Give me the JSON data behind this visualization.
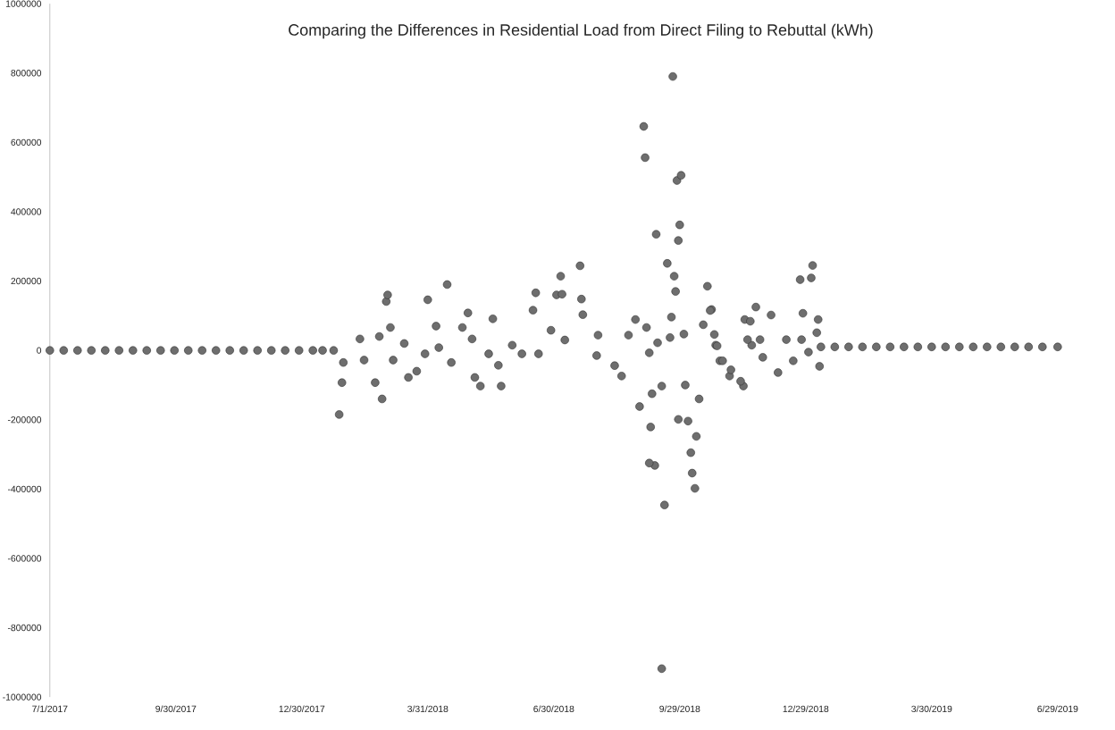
{
  "chart_data": {
    "type": "scatter",
    "title": "Comparing the Differences in Residential Load from Direct Filing to Rebuttal (kWh)",
    "color": "#6e6e6e",
    "grid": false,
    "legend": false,
    "xlim": [
      "2017-07-01",
      "2019-06-29"
    ],
    "xticks": [
      {
        "value": "2017-07-01",
        "label": "7/1/2017"
      },
      {
        "value": "2017-09-30",
        "label": "9/30/2017"
      },
      {
        "value": "2017-12-30",
        "label": "12/30/2017"
      },
      {
        "value": "2018-03-31",
        "label": "3/31/2018"
      },
      {
        "value": "2018-06-30",
        "label": "6/30/2018"
      },
      {
        "value": "2018-09-29",
        "label": "9/29/2018"
      },
      {
        "value": "2018-12-29",
        "label": "12/29/2018"
      },
      {
        "value": "2019-03-30",
        "label": "3/30/2019"
      },
      {
        "value": "2019-06-29",
        "label": "6/29/2019"
      }
    ],
    "ylim": [
      -1000000,
      1000000
    ],
    "yticks": [
      -1000000,
      -800000,
      -600000,
      -400000,
      -200000,
      0,
      200000,
      400000,
      600000,
      800000,
      1000000
    ],
    "x": [
      "2017-07-01",
      "2017-07-31",
      "2017-08-30",
      "2017-09-29",
      "2017-10-29",
      "2017-11-28",
      "2017-12-28",
      "2018-01-22",
      "2018-01-28",
      "2018-01-26",
      "2018-01-29",
      "2018-02-13",
      "2018-02-21",
      "2018-02-26",
      "2018-02-10",
      "2018-03-01",
      "2018-03-02",
      "2018-03-04",
      "2018-02-24",
      "2018-03-14",
      "2018-03-06",
      "2018-03-17",
      "2018-03-23",
      "2018-03-31",
      "2018-04-06",
      "2018-04-14",
      "2018-03-29",
      "2018-04-08",
      "2018-04-17",
      "2018-04-25",
      "2018-04-29",
      "2018-05-02",
      "2018-05-04",
      "2018-05-08",
      "2018-05-14",
      "2018-05-17",
      "2018-05-23",
      "2018-05-21",
      "2018-05-31",
      "2018-06-07",
      "2018-06-15",
      "2018-06-17",
      "2018-06-19",
      "2018-06-28",
      "2018-07-02",
      "2018-07-05",
      "2018-07-06",
      "2018-07-19",
      "2018-07-20",
      "2018-07-21",
      "2018-07-08",
      "2018-08-01",
      "2018-07-31",
      "2018-08-13",
      "2018-08-18",
      "2018-08-23",
      "2018-08-28",
      "2018-09-05",
      "2018-09-07",
      "2018-09-03",
      "2018-09-04",
      "2018-09-27",
      "2018-09-30",
      "2018-09-24",
      "2018-09-12",
      "2018-09-29",
      "2018-09-28",
      "2018-09-20",
      "2018-09-25",
      "2018-09-26",
      "2018-09-23",
      "2018-09-22",
      "2018-10-02",
      "2018-09-13",
      "2018-10-19",
      "2018-10-22",
      "2018-10-16",
      "2018-10-25",
      "2018-09-16",
      "2018-09-09",
      "2018-08-31",
      "2018-09-08",
      "2018-10-03",
      "2018-09-28",
      "2018-10-05",
      "2018-10-13",
      "2018-10-11",
      "2018-10-07",
      "2018-10-08",
      "2018-10-10",
      "2018-09-11",
      "2018-09-07",
      "2018-09-18",
      "2018-09-16",
      "2018-10-28",
      "2018-11-04",
      "2018-11-14",
      "2018-11-15",
      "2018-11-23",
      "2018-11-20",
      "2018-10-21",
      "2018-10-24",
      "2018-10-26",
      "2018-10-30",
      "2018-11-05",
      "2018-11-12",
      "2018-12-04",
      "2018-11-19",
      "2018-11-17",
      "2018-11-26",
      "2018-11-28",
      "2018-12-09",
      "2018-12-15",
      "2018-12-20",
      "2018-12-26",
      "2018-12-31",
      "2018-12-25",
      "2019-01-02",
      "2018-12-27",
      "2019-01-07",
      "2019-01-06",
      "2019-01-08",
      "2019-01-03",
      "2019-01-09",
      "2019-02-08",
      "2019-03-10",
      "2019-04-09",
      "2019-05-09",
      "2019-06-08",
      "2019-06-29",
      "2017-07-11",
      "2017-07-21",
      "2017-08-10",
      "2017-08-20",
      "2017-09-09",
      "2017-09-19",
      "2017-10-09",
      "2017-10-19",
      "2017-11-08",
      "2017-11-18",
      "2017-12-08",
      "2017-12-18",
      "2018-01-07",
      "2018-01-14",
      "2019-01-19",
      "2019-01-29",
      "2019-02-18",
      "2019-02-28",
      "2019-03-20",
      "2019-03-30",
      "2019-04-19",
      "2019-04-29",
      "2019-05-19",
      "2019-05-29",
      "2019-06-18"
    ],
    "values": [
      0,
      0,
      0,
      0,
      0,
      0,
      0,
      0,
      -93000,
      -185000,
      -35000,
      -28000,
      -93000,
      -140000,
      33000,
      141000,
      160000,
      66000,
      40000,
      20000,
      -28000,
      -78000,
      -60000,
      146000,
      70000,
      190000,
      -10000,
      8000,
      -35000,
      66000,
      108000,
      33000,
      -78000,
      -103000,
      -10000,
      91000,
      -103000,
      -43000,
      15000,
      -10000,
      116000,
      166000,
      -10000,
      58000,
      160000,
      214000,
      162000,
      244000,
      148000,
      103000,
      30000,
      44000,
      -15000,
      -44000,
      -74000,
      44000,
      89000,
      66000,
      -7000,
      646000,
      556000,
      490000,
      505000,
      790000,
      335000,
      362000,
      317000,
      251000,
      214000,
      170000,
      96000,
      37000,
      47000,
      22000,
      185000,
      118000,
      74000,
      15000,
      -103000,
      -125000,
      -162000,
      -221000,
      -100000,
      -199000,
      -204000,
      -140000,
      -248000,
      -295000,
      -354000,
      -398000,
      -332000,
      -325000,
      -446000,
      -918000,
      -30000,
      -74000,
      -103000,
      89000,
      125000,
      15000,
      115000,
      46000,
      13000,
      -30000,
      -56000,
      -89000,
      102000,
      84000,
      31000,
      31000,
      -20000,
      -64000,
      31000,
      -30000,
      31000,
      -5000,
      204000,
      209000,
      107000,
      89000,
      51000,
      -46000,
      245000,
      10000,
      10000,
      10000,
      10000,
      10000,
      10000,
      10000,
      0,
      0,
      0,
      0,
      0,
      0,
      0,
      0,
      0,
      0,
      0,
      0,
      0,
      0,
      10000,
      10000,
      10000,
      10000,
      10000,
      10000,
      10000,
      10000,
      10000,
      10000,
      10000
    ]
  }
}
